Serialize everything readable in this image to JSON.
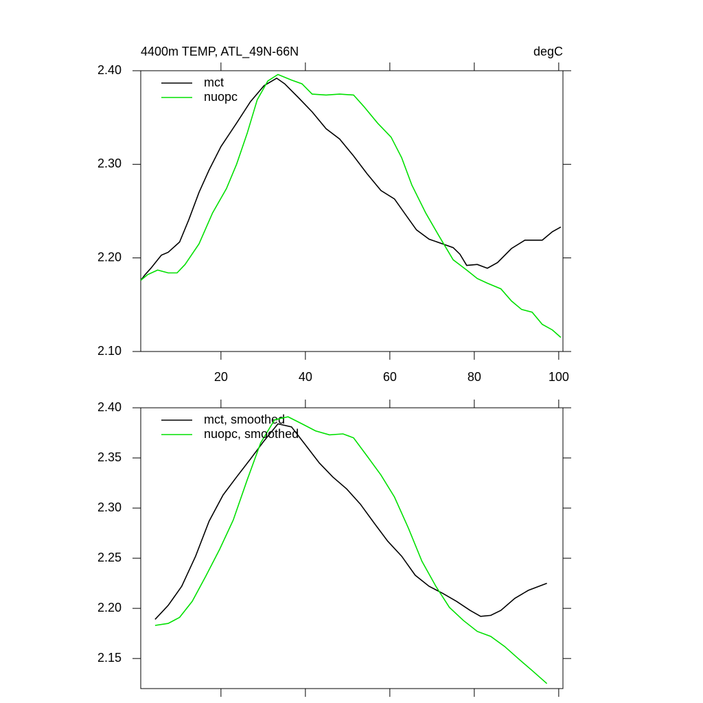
{
  "chart_data": [
    {
      "type": "line",
      "title": "4400m TEMP, ATL_49N-66N",
      "units": "degC",
      "xlim": [
        1,
        101
      ],
      "xticks": [
        20,
        40,
        60,
        80,
        100
      ],
      "xtick_labels": true,
      "ylim": [
        2.1,
        2.4
      ],
      "yticks": [
        {
          "value": 2.1,
          "label": "2.10"
        },
        {
          "value": 2.2,
          "label": "2.20"
        },
        {
          "value": 2.3,
          "label": "2.30"
        },
        {
          "value": 2.4,
          "label": "2.40"
        }
      ],
      "legend": "top-left",
      "series": [
        {
          "name": "mct",
          "color": "#000000",
          "x": [
            1,
            2,
            3.4,
            5.9,
            7.5,
            10.2,
            12.4,
            14.8,
            17.2,
            20,
            23.7,
            27,
            30.2,
            33.2,
            35.1,
            38.4,
            41.6,
            44.9,
            48.1,
            51.4,
            54.6,
            57.9,
            61.1,
            63.6,
            66.3,
            69.3,
            72.5,
            75,
            76.6,
            78.2,
            80.7,
            83.1,
            85.5,
            88.8,
            92,
            96.1,
            98.5,
            100.5
          ],
          "values": [
            2.176,
            2.182,
            2.189,
            2.203,
            2.206,
            2.217,
            2.241,
            2.27,
            2.294,
            2.319,
            2.344,
            2.367,
            2.384,
            2.392,
            2.386,
            2.371,
            2.356,
            2.338,
            2.327,
            2.309,
            2.29,
            2.272,
            2.263,
            2.247,
            2.23,
            2.22,
            2.215,
            2.211,
            2.204,
            2.192,
            2.193,
            2.189,
            2.195,
            2.21,
            2.219,
            2.219,
            2.228,
            2.233
          ]
        },
        {
          "name": "nuopc",
          "color": "#00e000",
          "x": [
            1,
            2.6,
            5,
            7.5,
            9.6,
            11.5,
            14.8,
            18,
            21.3,
            23.7,
            26.2,
            28.6,
            31.1,
            33.5,
            36.7,
            39.2,
            41.6,
            44.9,
            48.1,
            51.4,
            53.8,
            57.1,
            60.3,
            62.8,
            65.2,
            68.5,
            71.7,
            75,
            78.2,
            80.7,
            83.1,
            86.3,
            88.8,
            91.2,
            93.7,
            96.1,
            98.5,
            100.5
          ],
          "values": [
            2.176,
            2.182,
            2.187,
            2.184,
            2.184,
            2.193,
            2.215,
            2.248,
            2.274,
            2.3,
            2.333,
            2.369,
            2.389,
            2.396,
            2.39,
            2.386,
            2.375,
            2.374,
            2.375,
            2.374,
            2.362,
            2.344,
            2.329,
            2.307,
            2.278,
            2.248,
            2.223,
            2.198,
            2.187,
            2.178,
            2.173,
            2.167,
            2.154,
            2.145,
            2.142,
            2.129,
            2.123,
            2.115
          ]
        }
      ]
    },
    {
      "type": "line",
      "xlim": [
        1,
        101
      ],
      "xticks": [
        20,
        40,
        60,
        80,
        100
      ],
      "xtick_labels": false,
      "ylim": [
        2.12,
        2.4
      ],
      "yticks": [
        {
          "value": 2.15,
          "label": "2.15"
        },
        {
          "value": 2.2,
          "label": "2.20"
        },
        {
          "value": 2.25,
          "label": "2.25"
        },
        {
          "value": 2.3,
          "label": "2.30"
        },
        {
          "value": 2.35,
          "label": "2.35"
        },
        {
          "value": 2.4,
          "label": "2.40"
        }
      ],
      "legend": "top-left",
      "series": [
        {
          "name": "mct, smoothed",
          "color": "#000000",
          "x": [
            4.4,
            7.5,
            10.7,
            14,
            17.2,
            20.5,
            23.7,
            27,
            30.2,
            33.5,
            36.7,
            40,
            43.3,
            46.5,
            49.8,
            53,
            56.3,
            59.5,
            62.8,
            66,
            69.3,
            72.5,
            75.8,
            79,
            81.5,
            83.9,
            86.3,
            89.6,
            92.8,
            97.2
          ],
          "values": [
            2.189,
            2.203,
            2.222,
            2.252,
            2.287,
            2.313,
            2.331,
            2.349,
            2.367,
            2.384,
            2.381,
            2.363,
            2.345,
            2.331,
            2.319,
            2.304,
            2.285,
            2.267,
            2.252,
            2.233,
            2.222,
            2.215,
            2.207,
            2.198,
            2.192,
            2.193,
            2.198,
            2.21,
            2.218,
            2.225
          ]
        },
        {
          "name": "nuopc, smoothed",
          "color": "#00e000",
          "x": [
            4.4,
            7.5,
            10.2,
            13.2,
            16.4,
            19.7,
            22.9,
            26.2,
            29.4,
            32.7,
            35.9,
            39.2,
            42.4,
            45.7,
            48.9,
            51.4,
            54.6,
            57.9,
            61.1,
            64.4,
            67.6,
            70.9,
            74.1,
            77.4,
            80.7,
            83.9,
            87.2,
            90.4,
            93.7,
            97.2
          ],
          "values": [
            2.183,
            2.185,
            2.191,
            2.207,
            2.232,
            2.259,
            2.288,
            2.328,
            2.365,
            2.388,
            2.391,
            2.384,
            2.377,
            2.373,
            2.374,
            2.37,
            2.352,
            2.333,
            2.311,
            2.28,
            2.247,
            2.222,
            2.201,
            2.188,
            2.177,
            2.172,
            2.162,
            2.15,
            2.138,
            2.125
          ]
        }
      ]
    }
  ]
}
